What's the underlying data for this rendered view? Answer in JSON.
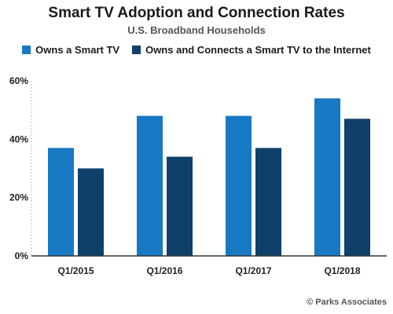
{
  "title": "Smart TV Adoption and Connection Rates",
  "subtitle": "U.S. Broadband Households",
  "footer": "© Parks Associates",
  "colors": {
    "series1": "#1778c4",
    "series2": "#0f406a",
    "axis": "#333333",
    "grid": "#bbbbbb"
  },
  "chart_data": {
    "type": "bar",
    "title": "Smart TV Adoption and Connection Rates",
    "subtitle": "U.S. Broadband Households",
    "categories": [
      "Q1/2015",
      "Q1/2016",
      "Q1/2017",
      "Q1/2018"
    ],
    "series": [
      {
        "name": "Owns a Smart TV",
        "values": [
          37,
          48,
          48,
          54
        ]
      },
      {
        "name": "Owns and Connects a Smart TV to the Internet",
        "values": [
          30,
          34,
          37,
          47
        ]
      }
    ],
    "ylim": [
      0,
      60
    ],
    "yticks": [
      "0%",
      "20%",
      "40%",
      "60%"
    ],
    "ytick_values": [
      0,
      20,
      40,
      60
    ],
    "grid": "dotted y-axis only",
    "legend_position": "top"
  }
}
